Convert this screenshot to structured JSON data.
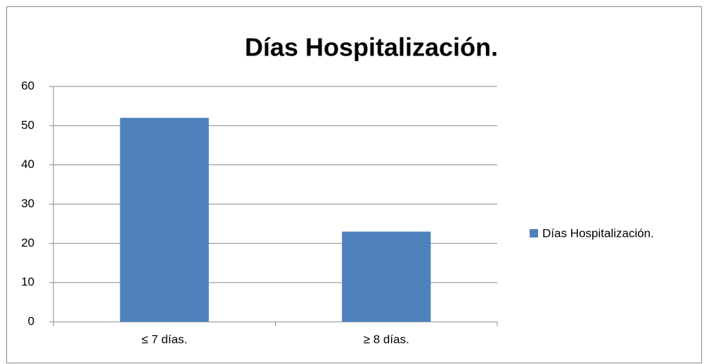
{
  "chart_data": {
    "type": "bar",
    "title": "Días Hospitalización.",
    "categories": [
      "≤ 7 días.",
      "≥ 8 días."
    ],
    "series": [
      {
        "name": "Días Hospitalización.",
        "color": "#4f81bd",
        "values": [
          52,
          23
        ]
      }
    ],
    "ylim": [
      0,
      60
    ],
    "yticks": [
      0,
      10,
      20,
      30,
      40,
      50,
      60
    ],
    "grid": true,
    "legend": "right"
  }
}
